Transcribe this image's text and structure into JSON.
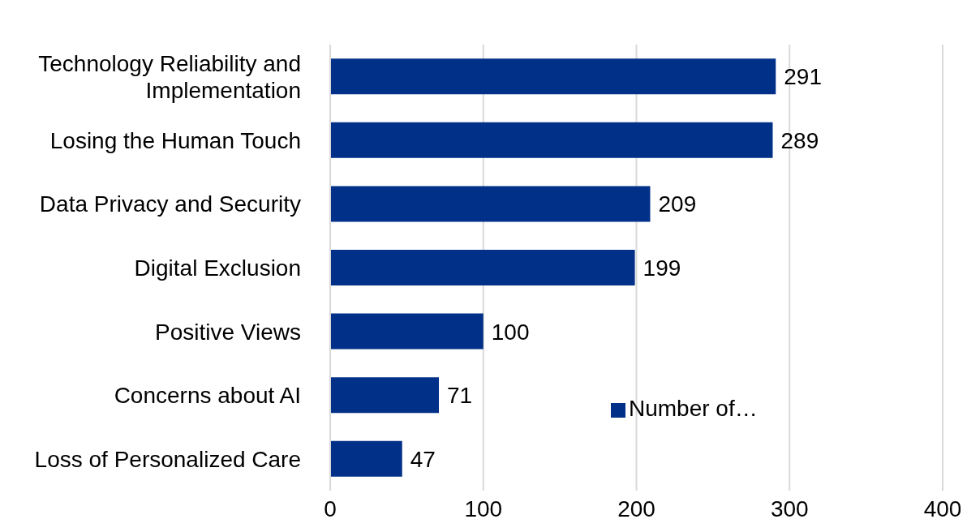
{
  "chart_data": {
    "type": "bar",
    "orientation": "horizontal",
    "categories": [
      "Technology Reliability and Implementation",
      "Losing the Human Touch",
      "Data Privacy and Security",
      "Digital Exclusion",
      "Positive Views",
      "Concerns about AI",
      "Loss of Personalized Care"
    ],
    "series": [
      {
        "name": "Number of…",
        "color": "#003087",
        "values": [
          291,
          289,
          209,
          199,
          100,
          71,
          47
        ]
      }
    ],
    "xlim": [
      0,
      400
    ],
    "xticks": [
      0,
      100,
      200,
      300,
      400
    ],
    "grid": "x",
    "legend": "bottom right",
    "data_labels": true
  }
}
